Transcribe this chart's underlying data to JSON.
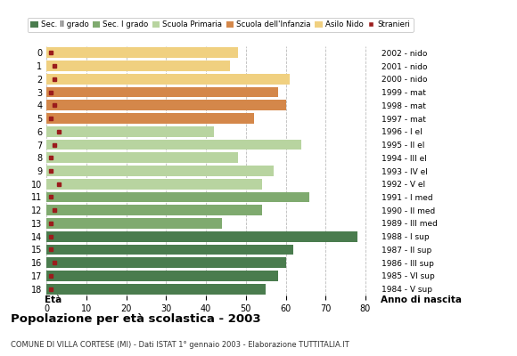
{
  "ages": [
    0,
    1,
    2,
    3,
    4,
    5,
    6,
    7,
    8,
    9,
    10,
    11,
    12,
    13,
    14,
    15,
    16,
    17,
    18
  ],
  "values": [
    48,
    46,
    61,
    58,
    60,
    52,
    42,
    64,
    48,
    57,
    54,
    66,
    54,
    44,
    78,
    62,
    60,
    58,
    55
  ],
  "stranieri": [
    1,
    2,
    2,
    1,
    2,
    1,
    3,
    2,
    1,
    1,
    3,
    1,
    2,
    1,
    1,
    1,
    2,
    1,
    1
  ],
  "right_labels": [
    "2002 - nido",
    "2001 - nido",
    "2000 - nido",
    "1999 - mat",
    "1998 - mat",
    "1997 - mat",
    "1996 - I el",
    "1995 - II el",
    "1994 - III el",
    "1993 - IV el",
    "1992 - V el",
    "1991 - I med",
    "1990 - II med",
    "1989 - III med",
    "1988 - I sup",
    "1987 - II sup",
    "1986 - III sup",
    "1985 - VI sup",
    "1984 - V sup"
  ],
  "bar_colors": [
    "#f0d080",
    "#f0d080",
    "#f0d080",
    "#d4874a",
    "#d4874a",
    "#d4874a",
    "#b8d4a0",
    "#b8d4a0",
    "#b8d4a0",
    "#b8d4a0",
    "#b8d4a0",
    "#7faa6f",
    "#7faa6f",
    "#7faa6f",
    "#4a7c4e",
    "#4a7c4e",
    "#4a7c4e",
    "#4a7c4e",
    "#4a7c4e"
  ],
  "legend_labels": [
    "Sec. II grado",
    "Sec. I grado",
    "Scuola Primaria",
    "Scuola dell'Infanzia",
    "Asilo Nido",
    "Stranieri"
  ],
  "legend_colors": [
    "#4a7c4e",
    "#7faa6f",
    "#b8d4a0",
    "#d4874a",
    "#f0d080",
    "#a02020"
  ],
  "title": "Popolazione per età scolastica - 2003",
  "subtitle": "COMUNE DI VILLA CORTESE (MI) - Dati ISTAT 1° gennaio 2003 - Elaborazione TUTTITALIA.IT",
  "xlabel_left": "Età",
  "xlabel_right": "Anno di nascita",
  "bg_color": "#ffffff",
  "grid_color": "#bbbbbb",
  "stranieri_color": "#9b1c1c",
  "xlim": [
    0,
    83
  ]
}
